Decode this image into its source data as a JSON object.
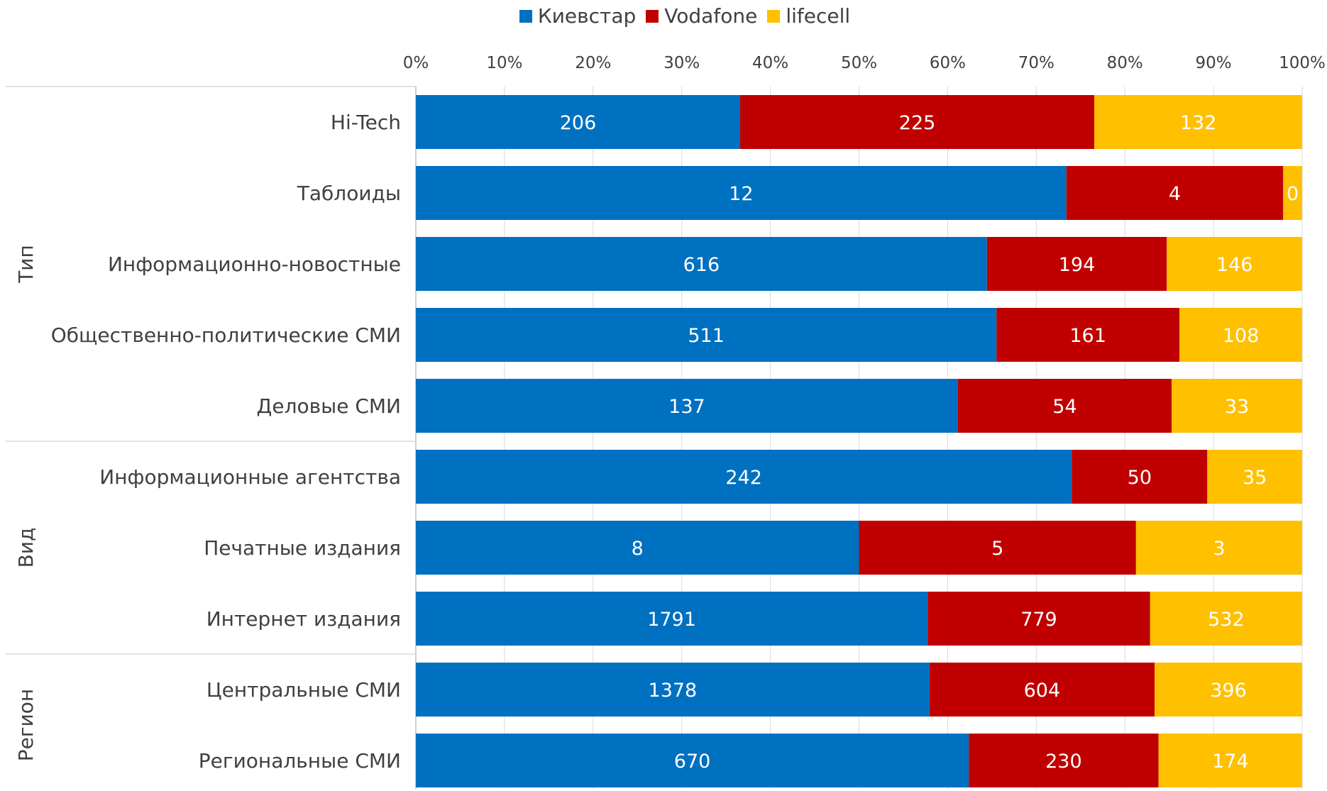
{
  "chart_data": {
    "type": "bar",
    "orientation": "horizontal",
    "stacked": "percent",
    "legend_position": "top",
    "grid": true,
    "xlim": [
      0,
      100
    ],
    "x_ticks": [
      "0%",
      "10%",
      "20%",
      "30%",
      "40%",
      "50%",
      "60%",
      "70%",
      "80%",
      "90%",
      "100%"
    ],
    "groups": [
      {
        "name": "Тип",
        "categories": [
          "Hi-Tech",
          "Таблоиды",
          "Информационно-новостные",
          "Общественно-политические СМИ",
          "Деловые СМИ"
        ]
      },
      {
        "name": "Вид",
        "categories": [
          "Информационные агентства",
          "Печатные издания",
          "Интернет издания"
        ]
      },
      {
        "name": "Регион",
        "categories": [
          "Центральные СМИ",
          "Региональные СМИ"
        ]
      }
    ],
    "categories": [
      "Hi-Tech",
      "Таблоиды",
      "Информационно-новостные",
      "Общественно-политические СМИ",
      "Деловые СМИ",
      "Информационные агентства",
      "Печатные издания",
      "Интернет издания",
      "Центральные СМИ",
      "Региональные СМИ"
    ],
    "series": [
      {
        "name": "Киевстар",
        "color": "#0070C0",
        "values": [
          206,
          12,
          616,
          511,
          137,
          242,
          8,
          1791,
          1378,
          670
        ]
      },
      {
        "name": "Vodafone",
        "color": "#C00000",
        "values": [
          225,
          4,
          194,
          161,
          54,
          50,
          5,
          779,
          604,
          230
        ]
      },
      {
        "name": "lifecell",
        "color": "#FFC000",
        "values": [
          132,
          0.35,
          146,
          108,
          33,
          35,
          3,
          532,
          396,
          174
        ]
      }
    ],
    "data_labels": [
      [
        "206",
        "12",
        "616",
        "511",
        "137",
        "242",
        "8",
        "1791",
        "1378",
        "670"
      ],
      [
        "225",
        "4",
        "194",
        "161",
        "54",
        "50",
        "5",
        "779",
        "604",
        "230"
      ],
      [
        "132",
        "0",
        "146",
        "108",
        "33",
        "35",
        "3",
        "532",
        "396",
        "174"
      ]
    ]
  }
}
